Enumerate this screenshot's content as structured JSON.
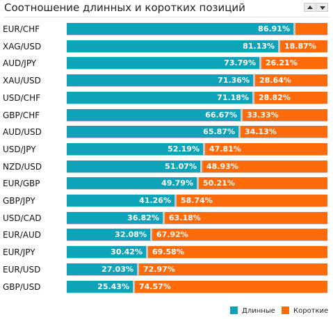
{
  "header": {
    "title": "Соотношение длинных и коротких позиций"
  },
  "colors": {
    "long": "#0ea3b8",
    "short": "#ff6a0a",
    "track": "#c9c9c9"
  },
  "chart_data": {
    "type": "bar",
    "stacked": true,
    "orientation": "horizontal",
    "title": "Соотношение длинных и коротких позиций",
    "xlim": [
      0,
      100
    ],
    "unit": "%",
    "legend_position": "bottom-right",
    "categories": [
      "EUR/CHF",
      "XAG/USD",
      "AUD/JPY",
      "XAU/USD",
      "USD/CHF",
      "GBP/CHF",
      "AUD/USD",
      "USD/JPY",
      "NZD/USD",
      "EUR/GBP",
      "GBP/JPY",
      "USD/CAD",
      "EUR/AUD",
      "EUR/JPY",
      "EUR/USD",
      "GBP/USD"
    ],
    "series": [
      {
        "name": "Длинные",
        "values": [
          86.91,
          81.13,
          73.79,
          71.36,
          71.18,
          66.67,
          65.87,
          52.19,
          51.07,
          49.79,
          41.26,
          36.82,
          32.08,
          30.42,
          27.03,
          25.43
        ]
      },
      {
        "name": "Короткие",
        "values": [
          13.09,
          18.87,
          26.21,
          28.64,
          28.82,
          33.33,
          34.13,
          47.81,
          48.93,
          50.21,
          58.74,
          63.18,
          67.92,
          69.58,
          72.97,
          74.57
        ]
      }
    ],
    "long_labels": [
      "86.91%",
      "81.13%",
      "73.79%",
      "71.36%",
      "71.18%",
      "66.67%",
      "65.87%",
      "52.19%",
      "51.07%",
      "49.79%",
      "41.26%",
      "36.82%",
      "32.08%",
      "30.42%",
      "27.03%",
      "25.43%"
    ],
    "short_labels": [
      "",
      "18.87%",
      "26.21%",
      "28.64%",
      "28.82%",
      "33.33%",
      "34.13%",
      "47.81%",
      "48.93%",
      "50.21%",
      "58.74%",
      "63.18%",
      "67.92%",
      "69.58%",
      "72.97%",
      "74.57%"
    ]
  }
}
